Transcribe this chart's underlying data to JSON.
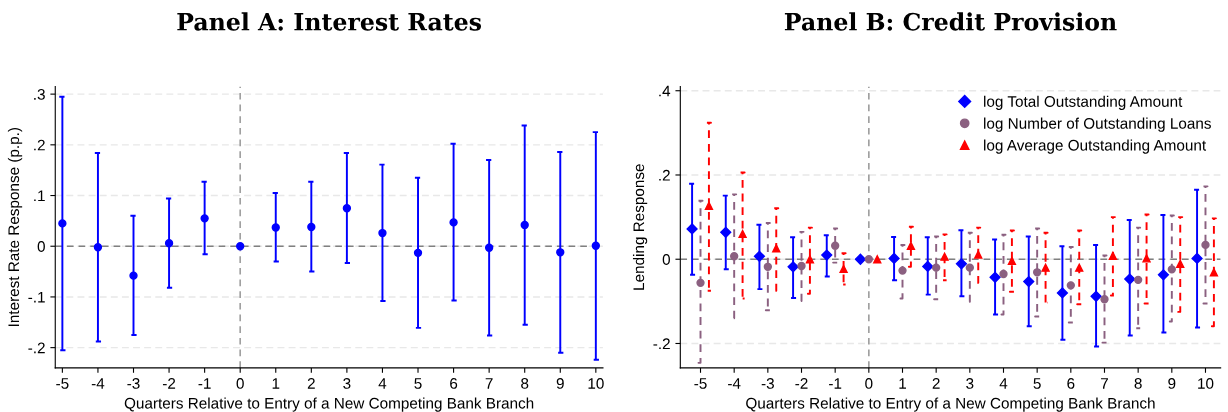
{
  "chart_data": [
    {
      "type": "scatter",
      "title": "Panel A: Interest Rates",
      "xlabel": "Quarters Relative to Entry of a New Competing Bank Branch",
      "ylabel": "Interest Rate Response (p.p.)",
      "x": [
        -5,
        -4,
        -3,
        -2,
        -1,
        0,
        1,
        2,
        3,
        4,
        5,
        6,
        7,
        8,
        9,
        10
      ],
      "series": [
        {
          "color": "#0000ff",
          "marker": "circle",
          "line_style": "solid",
          "values": [
            0.045,
            -0.002,
            -0.058,
            0.006,
            0.055,
            0,
            0.037,
            0.038,
            0.075,
            0.026,
            -0.013,
            0.047,
            -0.003,
            0.042,
            -0.012,
            0.001
          ],
          "errors": [
            [
              -0.205,
              0.295
            ],
            [
              -0.188,
              0.184
            ],
            [
              -0.175,
              0.06
            ],
            [
              -0.082,
              0.094
            ],
            [
              -0.016,
              0.127
            ],
            null,
            [
              -0.03,
              0.105
            ],
            [
              -0.05,
              0.127
            ],
            [
              -0.033,
              0.184
            ],
            [
              -0.108,
              0.161
            ],
            [
              -0.161,
              0.135
            ],
            [
              -0.107,
              0.202
            ],
            [
              -0.176,
              0.17
            ],
            [
              -0.155,
              0.238
            ],
            [
              -0.21,
              0.186
            ],
            [
              -0.224,
              0.225
            ]
          ]
        }
      ],
      "xlim": [
        -5.2,
        10.2
      ],
      "ylim": [
        -0.24,
        0.315
      ],
      "xticks": [
        -5,
        -4,
        -3,
        -2,
        -1,
        0,
        1,
        2,
        3,
        4,
        5,
        6,
        7,
        8,
        9,
        10
      ],
      "yticks": [
        {
          "value": -0.2,
          "label": "-.2"
        },
        {
          "value": -0.1,
          "label": "-.1"
        },
        0,
        {
          "value": 0.1,
          "label": ".1"
        },
        {
          "value": 0.2,
          "label": ".2"
        },
        {
          "value": 0.3,
          "label": ".3"
        }
      ],
      "ref_lines": [
        {
          "axis": "y",
          "value": 0,
          "color": "#808080",
          "line_style": "dashed"
        },
        {
          "axis": "x",
          "value": 0,
          "color": "#a0a0a0",
          "line_style": "dashed"
        }
      ],
      "grid": "y",
      "legend": false
    },
    {
      "type": "scatter",
      "title": "Panel B: Credit Provision",
      "xlabel": "Quarters Relative to Entry of a New Competing Bank Branch",
      "ylabel": "Lending Response",
      "series": [
        {
          "name": "log Total Outstanding Amount",
          "color": "#0000ff",
          "marker": "diamond",
          "line_style": "solid",
          "x": [
            -5.25,
            -4.25,
            -3.25,
            -2.25,
            -1.25,
            -0.25,
            0.75,
            1.75,
            2.75,
            3.75,
            4.75,
            5.75,
            6.75,
            7.75,
            8.75,
            9.75
          ],
          "values": [
            0.072,
            0.064,
            0.007,
            -0.018,
            0.01,
            0,
            0.002,
            -0.017,
            -0.011,
            -0.043,
            -0.053,
            -0.08,
            -0.088,
            -0.047,
            -0.037,
            0.002
          ],
          "errors": [
            [
              -0.037,
              0.179
            ],
            [
              -0.024,
              0.151
            ],
            [
              -0.071,
              0.082
            ],
            [
              -0.092,
              0.052
            ],
            [
              -0.041,
              0.057
            ],
            null,
            [
              -0.05,
              0.053
            ],
            [
              -0.084,
              0.052
            ],
            [
              -0.088,
              0.069
            ],
            [
              -0.131,
              0.047
            ],
            [
              -0.159,
              0.054
            ],
            [
              -0.191,
              0.031
            ],
            [
              -0.207,
              0.034
            ],
            [
              -0.181,
              0.093
            ],
            [
              -0.174,
              0.105
            ],
            [
              -0.162,
              0.165
            ]
          ]
        },
        {
          "name": "log Number of Outstanding Loans",
          "color": "#8b6080",
          "marker": "circle",
          "line_style": "dashed",
          "x": [
            -5,
            -4,
            -3,
            -2,
            -1,
            0,
            1,
            2,
            3,
            4,
            5,
            6,
            7,
            8,
            9,
            10
          ],
          "values": [
            -0.056,
            0.007,
            -0.018,
            -0.016,
            0.032,
            0,
            -0.027,
            -0.02,
            -0.02,
            -0.035,
            -0.031,
            -0.062,
            -0.095,
            -0.049,
            -0.024,
            0.034
          ],
          "errors": [
            [
              -0.246,
              0.139
            ],
            [
              -0.14,
              0.154
            ],
            [
              -0.121,
              0.086
            ],
            [
              -0.099,
              0.065
            ],
            [
              -0.008,
              0.073
            ],
            null,
            [
              -0.093,
              0.034
            ],
            [
              -0.095,
              0.054
            ],
            [
              -0.101,
              0.063
            ],
            [
              -0.131,
              0.058
            ],
            [
              -0.136,
              0.073
            ],
            [
              -0.15,
              0.029
            ],
            [
              -0.198,
              0.009
            ],
            [
              -0.164,
              0.075
            ],
            [
              -0.148,
              0.104
            ],
            [
              -0.105,
              0.173
            ]
          ]
        },
        {
          "name": "log Average Outstanding Amount",
          "color": "#ff0000",
          "marker": "triangle",
          "line_style": "dashed",
          "x": [
            -4.75,
            -3.75,
            -2.75,
            -1.75,
            -0.75,
            0.25,
            1.25,
            2.25,
            3.25,
            4.25,
            5.25,
            6.25,
            7.25,
            8.25,
            9.25,
            10.25
          ],
          "values": [
            0.127,
            0.06,
            0.026,
            0,
            -0.023,
            0,
            0.032,
            0.006,
            0.011,
            -0.004,
            -0.02,
            -0.02,
            0.008,
            0.002,
            -0.011,
            -0.031
          ],
          "errors": [
            [
              -0.075,
              0.324
            ],
            [
              -0.093,
              0.206
            ],
            [
              -0.075,
              0.121
            ],
            [
              -0.082,
              0.075
            ],
            [
              -0.06,
              0.014
            ],
            null,
            [
              -0.018,
              0.077
            ],
            [
              -0.05,
              0.059
            ],
            [
              -0.056,
              0.075
            ],
            [
              -0.077,
              0.068
            ],
            [
              -0.103,
              0.063
            ],
            [
              -0.107,
              0.068
            ],
            [
              -0.086,
              0.1
            ],
            [
              -0.105,
              0.106
            ],
            [
              -0.125,
              0.1
            ],
            [
              -0.159,
              0.097
            ]
          ]
        }
      ],
      "xlim": [
        -5.6,
        10.45
      ],
      "ylim": [
        -0.258,
        0.41
      ],
      "xticks": [
        -5,
        -4,
        -3,
        -2,
        -1,
        0,
        1,
        2,
        3,
        4,
        5,
        6,
        7,
        8,
        9,
        10
      ],
      "yticks": [
        {
          "value": -0.2,
          "label": "-.2"
        },
        0,
        {
          "value": 0.2,
          "label": ".2"
        },
        {
          "value": 0.4,
          "label": ".4"
        }
      ],
      "ref_lines": [
        {
          "axis": "y",
          "value": 0,
          "color": "#808080",
          "line_style": "dashed"
        },
        {
          "axis": "x",
          "value": 0,
          "color": "#a0a0a0",
          "line_style": "dashed"
        }
      ],
      "grid": "y",
      "legend": "top right"
    }
  ]
}
